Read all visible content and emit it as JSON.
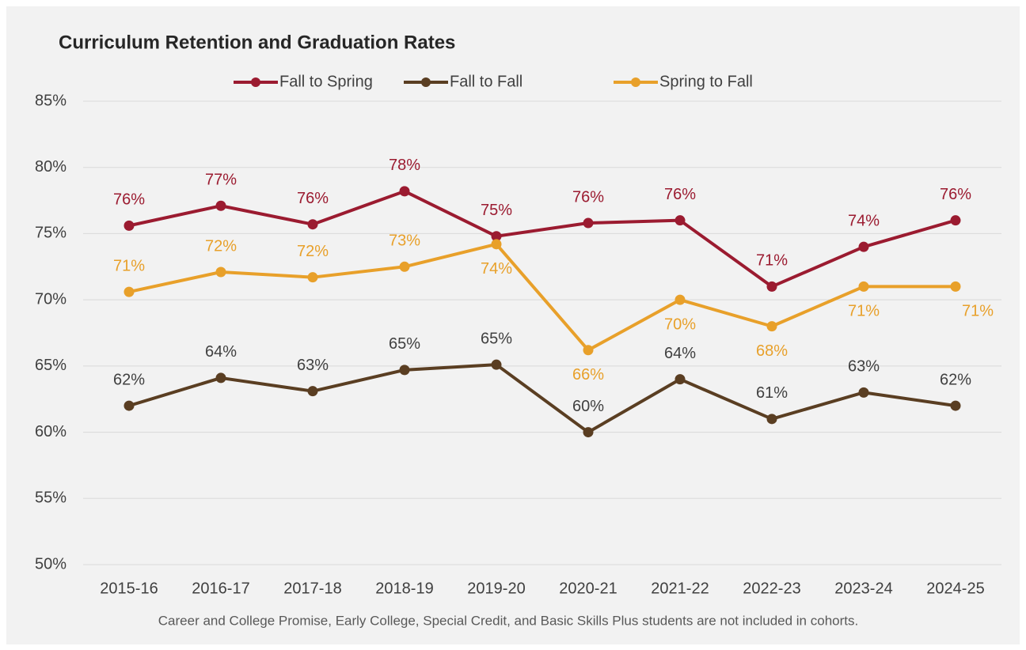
{
  "chart_data": {
    "type": "line",
    "title": "Curriculum Retention and Graduation Rates",
    "footnote": "Career and College Promise, Early College, Special Credit, and Basic Skills Plus students are not included in cohorts.",
    "categories": [
      "2015-16",
      "2016-17",
      "2017-18",
      "2018-19",
      "2019-20",
      "2020-21",
      "2021-22",
      "2022-23",
      "2023-24",
      "2024-25"
    ],
    "series": [
      {
        "name": "Fall to Spring",
        "color": "#9b1b30",
        "values": [
          75.6,
          77.1,
          75.7,
          78.2,
          74.8,
          75.8,
          76.0,
          71.0,
          74.0,
          76.0
        ],
        "value_labels": [
          "76%",
          "77%",
          "76%",
          "78%",
          "75%",
          "76%",
          "76%",
          "71%",
          "74%",
          "76%"
        ]
      },
      {
        "name": "Fall to Fall",
        "color": "#5a3e22",
        "values": [
          62.0,
          64.1,
          63.1,
          64.7,
          65.1,
          60.0,
          64.0,
          61.0,
          63.0,
          62.0
        ],
        "value_labels": [
          "62%",
          "64%",
          "63%",
          "65%",
          "65%",
          "60%",
          "64%",
          "61%",
          "63%",
          "62%"
        ]
      },
      {
        "name": "Spring to Fall",
        "color": "#e8a02a",
        "values": [
          70.6,
          72.1,
          71.7,
          72.5,
          74.2,
          66.2,
          70.0,
          68.0,
          71.0,
          71.0
        ],
        "value_labels": [
          "71%",
          "72%",
          "72%",
          "73%",
          "74%",
          "66%",
          "70%",
          "68%",
          "71%",
          "71%"
        ]
      }
    ],
    "ylim": [
      50,
      85
    ],
    "yticks": [
      {
        "value": 50,
        "label": "50%"
      },
      {
        "value": 55,
        "label": "55%"
      },
      {
        "value": 60,
        "label": "60%"
      },
      {
        "value": 65,
        "label": "65%"
      },
      {
        "value": 70,
        "label": "70%"
      },
      {
        "value": 75,
        "label": "75%"
      },
      {
        "value": 80,
        "label": "80%"
      },
      {
        "value": 85,
        "label": "85%"
      }
    ],
    "grid": true,
    "legend": "top"
  }
}
